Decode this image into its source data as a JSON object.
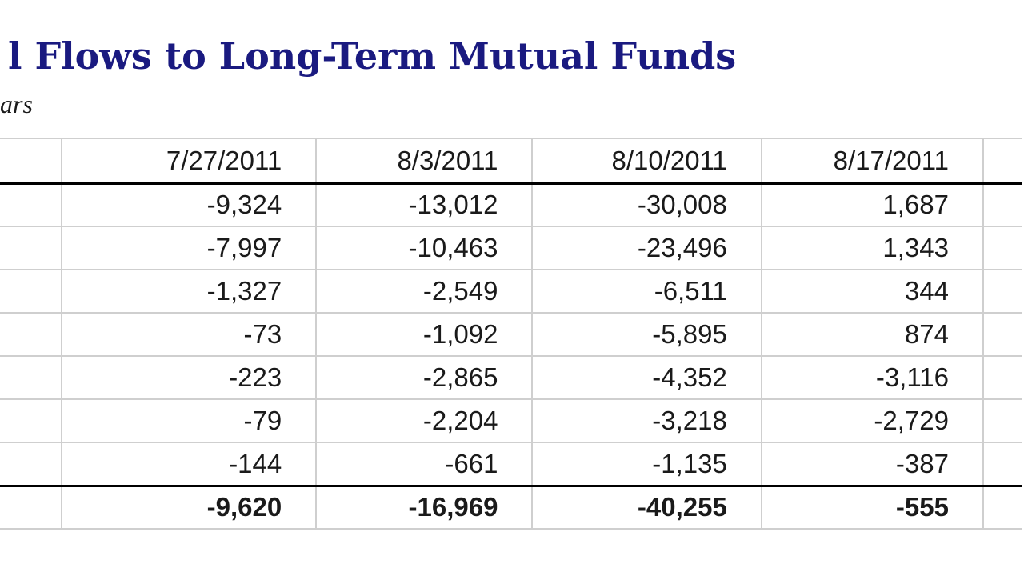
{
  "title": "l Flows to Long-Term Mutual Funds",
  "subtitle": "ars",
  "table": {
    "columns": [
      "",
      "7/27/2011",
      "8/3/2011",
      "8/10/2011",
      "8/17/2011",
      ""
    ],
    "rows": [
      [
        "",
        "-9,324",
        "-13,012",
        "-30,008",
        "1,687",
        ""
      ],
      [
        "",
        "-7,997",
        "-10,463",
        "-23,496",
        "1,343",
        ""
      ],
      [
        "",
        "-1,327",
        "-2,549",
        "-6,511",
        "344",
        ""
      ],
      [
        "",
        "-73",
        "-1,092",
        "-5,895",
        "874",
        ""
      ],
      [
        "",
        "-223",
        "-2,865",
        "-4,352",
        "-3,116",
        ""
      ],
      [
        "",
        "-79",
        "-2,204",
        "-3,218",
        "-2,729",
        ""
      ],
      [
        "",
        "-144",
        "-661",
        "-1,135",
        "-387",
        ""
      ]
    ],
    "total_row": [
      "",
      "-9,620",
      "-16,969",
      "-40,255",
      "-555",
      ""
    ]
  }
}
